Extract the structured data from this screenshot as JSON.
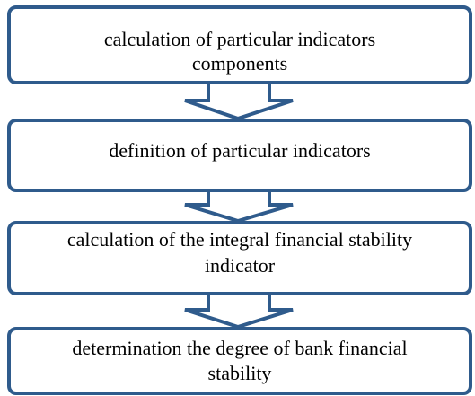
{
  "nodes": [
    {
      "lines": [
        "calculation of particular indicators",
        "components"
      ]
    },
    {
      "lines": [
        "definition of particular indicators"
      ]
    },
    {
      "lines": [
        "calculation of the integral financial stability",
        "indicator"
      ]
    },
    {
      "lines": [
        "determination the degree of bank financial",
        "stability"
      ]
    }
  ]
}
